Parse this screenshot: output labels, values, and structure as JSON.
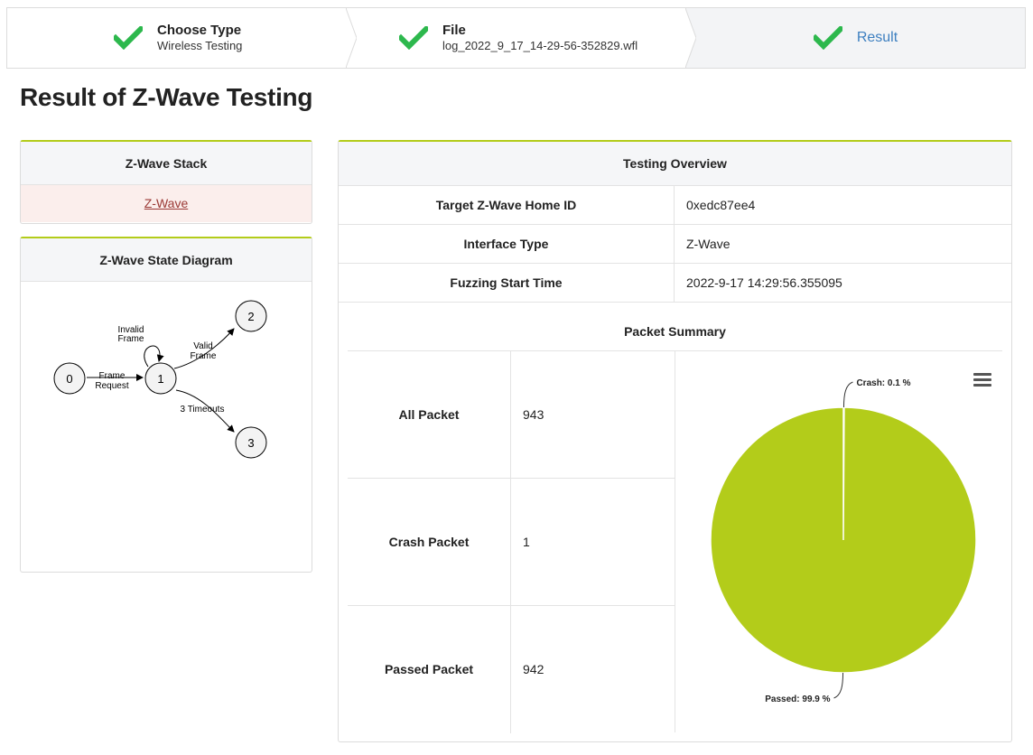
{
  "steps": [
    {
      "title": "Choose Type",
      "subtitle": "Wireless Testing",
      "done": true
    },
    {
      "title": "File",
      "subtitle": "log_2022_9_17_14-29-56-352829.wfl",
      "done": true
    },
    {
      "title": "Result",
      "subtitle": "",
      "done": true,
      "active": true
    }
  ],
  "page_title": "Result of Z-Wave Testing",
  "stack": {
    "header": "Z-Wave Stack",
    "link": "Z-Wave"
  },
  "diagram": {
    "header": "Z-Wave State Diagram",
    "nodes": [
      "0",
      "1",
      "2",
      "3"
    ],
    "edges": {
      "frame_request": [
        "Frame",
        "Request"
      ],
      "invalid_frame": [
        "Invalid",
        "Frame"
      ],
      "valid_frame": [
        "Valid",
        "Frame"
      ],
      "timeouts": "3 Timeouts"
    }
  },
  "overview": {
    "header": "Testing Overview",
    "rows": [
      {
        "key": "Target Z-Wave Home ID",
        "value": "0xedc87ee4"
      },
      {
        "key": "Interface Type",
        "value": "Z-Wave"
      },
      {
        "key": "Fuzzing Start Time",
        "value": "2022-9-17 14:29:56.355095"
      }
    ]
  },
  "packet_summary": {
    "title": "Packet Summary",
    "rows": [
      {
        "key": "All Packet",
        "value": "943"
      },
      {
        "key": "Crash Packet",
        "value": "1"
      },
      {
        "key": "Passed Packet",
        "value": "942"
      }
    ]
  },
  "colors": {
    "accent": "#b3cc1a",
    "check": "#2db84d",
    "active_step": "#3d7fc0",
    "link": "#9b3a36"
  },
  "chart_data": {
    "type": "pie",
    "slices": [
      {
        "name": "Crash",
        "value": 0.1,
        "label": "Crash: 0.1 %",
        "color": "#b3cc1a"
      },
      {
        "name": "Passed",
        "value": 99.9,
        "label": "Passed: 99.9 %",
        "color": "#b3cc1a"
      }
    ],
    "legend": "none",
    "menu_icon": "hamburger-icon"
  }
}
